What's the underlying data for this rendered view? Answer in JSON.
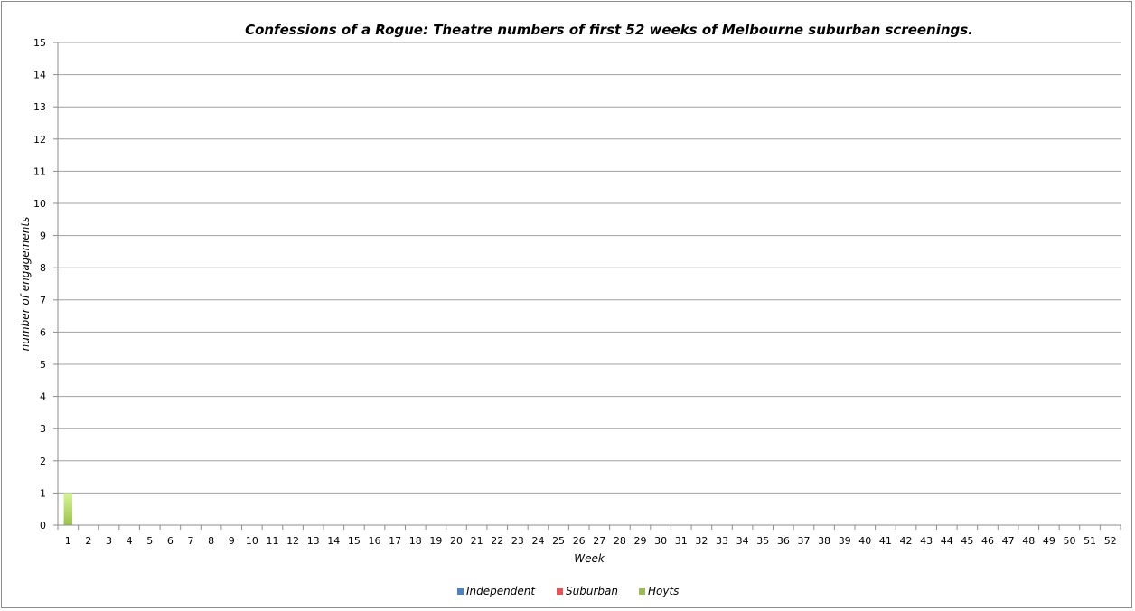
{
  "chart_data": {
    "type": "bar",
    "stacked": true,
    "title": "Confessions of a Rogue: Theatre numbers of first 52 weeks of Melbourne suburban screenings.",
    "xlabel": "Week",
    "ylabel": "number of engagements",
    "ylim": [
      0,
      15
    ],
    "yticks": [
      0,
      1,
      2,
      3,
      4,
      5,
      6,
      7,
      8,
      9,
      10,
      11,
      12,
      13,
      14,
      15
    ],
    "grid": true,
    "legend": "bottom",
    "categories": [
      "1",
      "2",
      "3",
      "4",
      "5",
      "6",
      "7",
      "8",
      "9",
      "10",
      "11",
      "12",
      "13",
      "14",
      "15",
      "16",
      "17",
      "18",
      "19",
      "20",
      "21",
      "22",
      "23",
      "24",
      "25",
      "26",
      "27",
      "28",
      "29",
      "30",
      "31",
      "32",
      "33",
      "34",
      "35",
      "36",
      "37",
      "38",
      "39",
      "40",
      "41",
      "42",
      "43",
      "44",
      "45",
      "46",
      "47",
      "48",
      "49",
      "50",
      "51",
      "52"
    ],
    "series": [
      {
        "name": "Independent",
        "color": "#4f81bd",
        "values": [
          0,
          0,
          0,
          0,
          0,
          0,
          0,
          0,
          0,
          0,
          0,
          0,
          0,
          0,
          0,
          0,
          0,
          0,
          0,
          0,
          0,
          0,
          0,
          0,
          0,
          0,
          0,
          0,
          0,
          0,
          0,
          0,
          0,
          0,
          0,
          0,
          0,
          0,
          0,
          0,
          0,
          0,
          0,
          0,
          0,
          0,
          0,
          0,
          0,
          0,
          0,
          0
        ]
      },
      {
        "name": "Suburban",
        "color": "#e0575a",
        "values": [
          0,
          0,
          0,
          0,
          0,
          0,
          0,
          0,
          0,
          0,
          0,
          0,
          0,
          0,
          0,
          0,
          0,
          0,
          0,
          0,
          0,
          0,
          0,
          0,
          0,
          0,
          0,
          0,
          0,
          0,
          0,
          0,
          0,
          0,
          0,
          0,
          0,
          0,
          0,
          0,
          0,
          0,
          0,
          0,
          0,
          0,
          0,
          0,
          0,
          0,
          0,
          0
        ]
      },
      {
        "name": "Hoyts",
        "color": "#9bbb59",
        "values": [
          1,
          0,
          0,
          0,
          0,
          0,
          0,
          0,
          0,
          0,
          0,
          0,
          0,
          0,
          0,
          0,
          0,
          0,
          0,
          0,
          0,
          0,
          0,
          0,
          0,
          0,
          0,
          0,
          0,
          0,
          0,
          0,
          0,
          0,
          0,
          0,
          0,
          0,
          0,
          0,
          0,
          0,
          0,
          0,
          0,
          0,
          0,
          0,
          0,
          0,
          0,
          0
        ]
      }
    ]
  }
}
